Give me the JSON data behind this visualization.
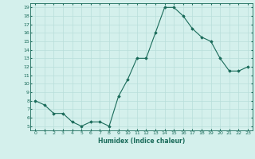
{
  "x": [
    0,
    1,
    2,
    3,
    4,
    5,
    6,
    7,
    8,
    9,
    10,
    11,
    12,
    13,
    14,
    15,
    16,
    17,
    18,
    19,
    20,
    21,
    22,
    23
  ],
  "y": [
    8.0,
    7.5,
    6.5,
    6.5,
    5.5,
    5.0,
    5.5,
    5.5,
    5.0,
    8.5,
    10.5,
    13.0,
    13.0,
    16.0,
    19.0,
    19.0,
    18.0,
    16.5,
    15.5,
    15.0,
    13.0,
    11.5,
    11.5,
    12.0
  ],
  "line_color": "#1a6b5a",
  "bg_color": "#d4f0ec",
  "grid_color": "#b8deda",
  "xlabel": "Humidex (Indice chaleur)",
  "xlabel_color": "#1a6b5a",
  "tick_color": "#1a6b5a",
  "ylim": [
    4.5,
    19.5
  ],
  "yticks": [
    5,
    6,
    7,
    8,
    9,
    10,
    11,
    12,
    13,
    14,
    15,
    16,
    17,
    18,
    19
  ],
  "xlim": [
    -0.5,
    23.5
  ],
  "xticks": [
    0,
    1,
    2,
    3,
    4,
    5,
    6,
    7,
    8,
    9,
    10,
    11,
    12,
    13,
    14,
    15,
    16,
    17,
    18,
    19,
    20,
    21,
    22,
    23
  ]
}
